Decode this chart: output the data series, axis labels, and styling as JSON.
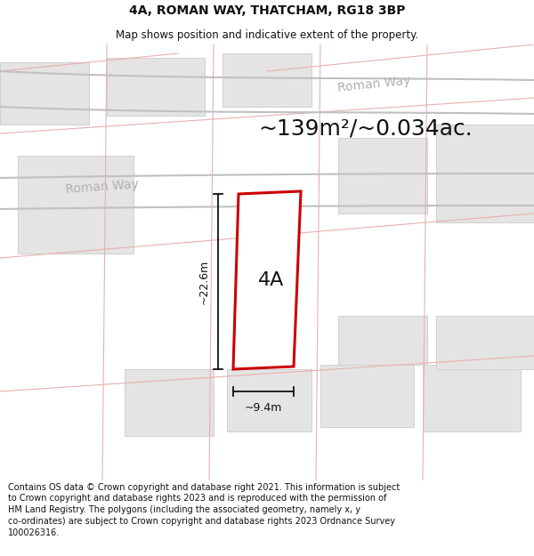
{
  "title": "4A, ROMAN WAY, THATCHAM, RG18 3BP",
  "subtitle": "Map shows position and indicative extent of the property.",
  "footer_lines": [
    "Contains OS data © Crown copyright and database right 2021. This information is subject",
    "to Crown copyright and database rights 2023 and is reproduced with the permission of",
    "HM Land Registry. The polygons (including the associated geometry, namely x, y",
    "co-ordinates) are subject to Crown copyright and database rights 2023 Ordnance Survey",
    "100026316."
  ],
  "area_label": "~139m²/~0.034ac.",
  "property_label": "4A",
  "dim_vertical": "~22.6m",
  "dim_horizontal": "~9.4m",
  "street_label": "Roman Way",
  "bg_color": "#ffffff",
  "map_bg": "#f8f8f8",
  "building_color": "#e4e4e4",
  "building_edge": "#d0d0d0",
  "road_line_color": "#e8b0b0",
  "road_curve_color": "#c0c0c0",
  "road_label_color": "#b0b0b0",
  "property_fill": "#f0f0f0",
  "property_edge": "#cc0000",
  "dim_color": "#111111",
  "title_color": "#111111",
  "footer_color": "#111111"
}
